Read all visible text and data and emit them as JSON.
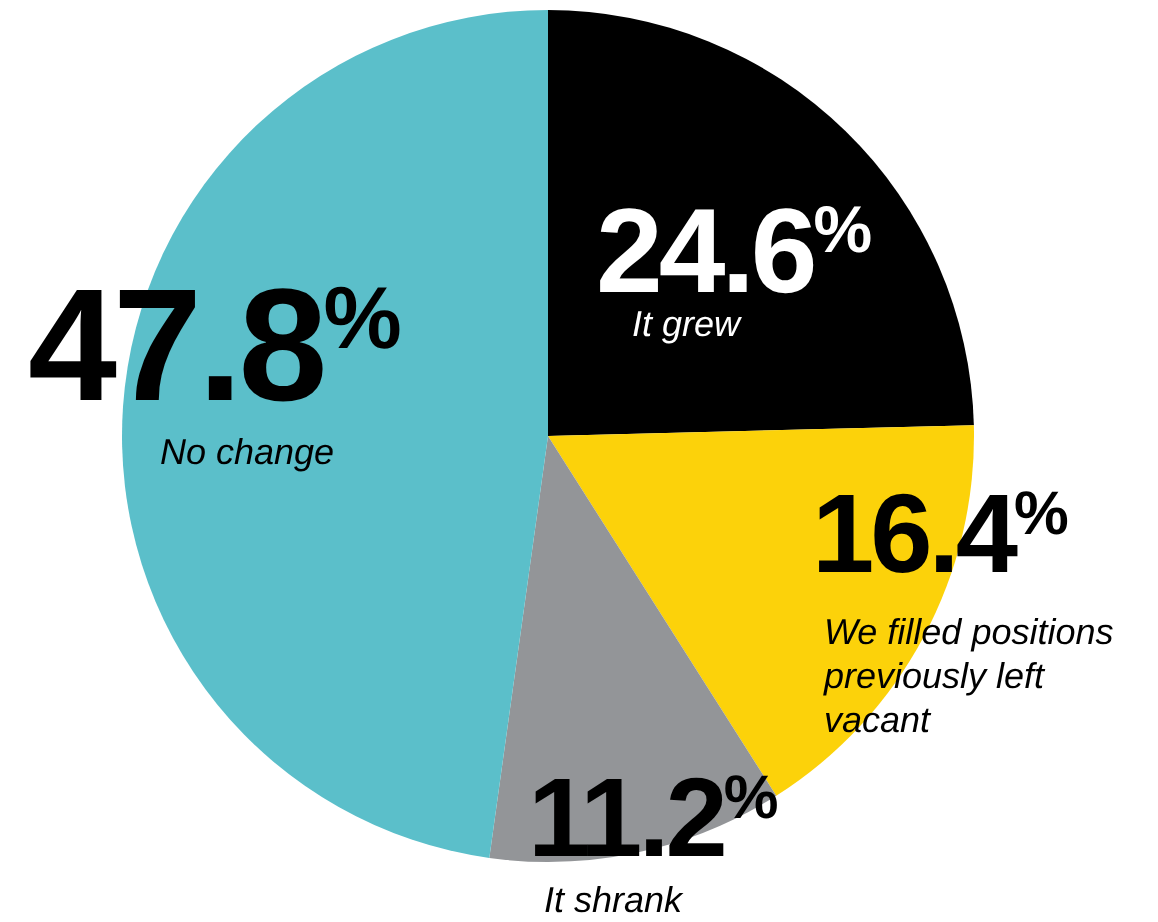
{
  "chart_data": {
    "type": "pie",
    "categories": [
      "It grew",
      "We filled positions previously left vacant",
      "It shrank",
      "No change"
    ],
    "values": [
      24.6,
      16.4,
      11.2,
      47.8
    ],
    "colors": [
      "#000000",
      "#fcd20a",
      "#939598",
      "#5bbfca"
    ],
    "value_labels": [
      "24.6$^{%}$",
      "16.4$^{%}$",
      "11.2$^{%}$",
      "47.8$^{%}$"
    ]
  }
}
